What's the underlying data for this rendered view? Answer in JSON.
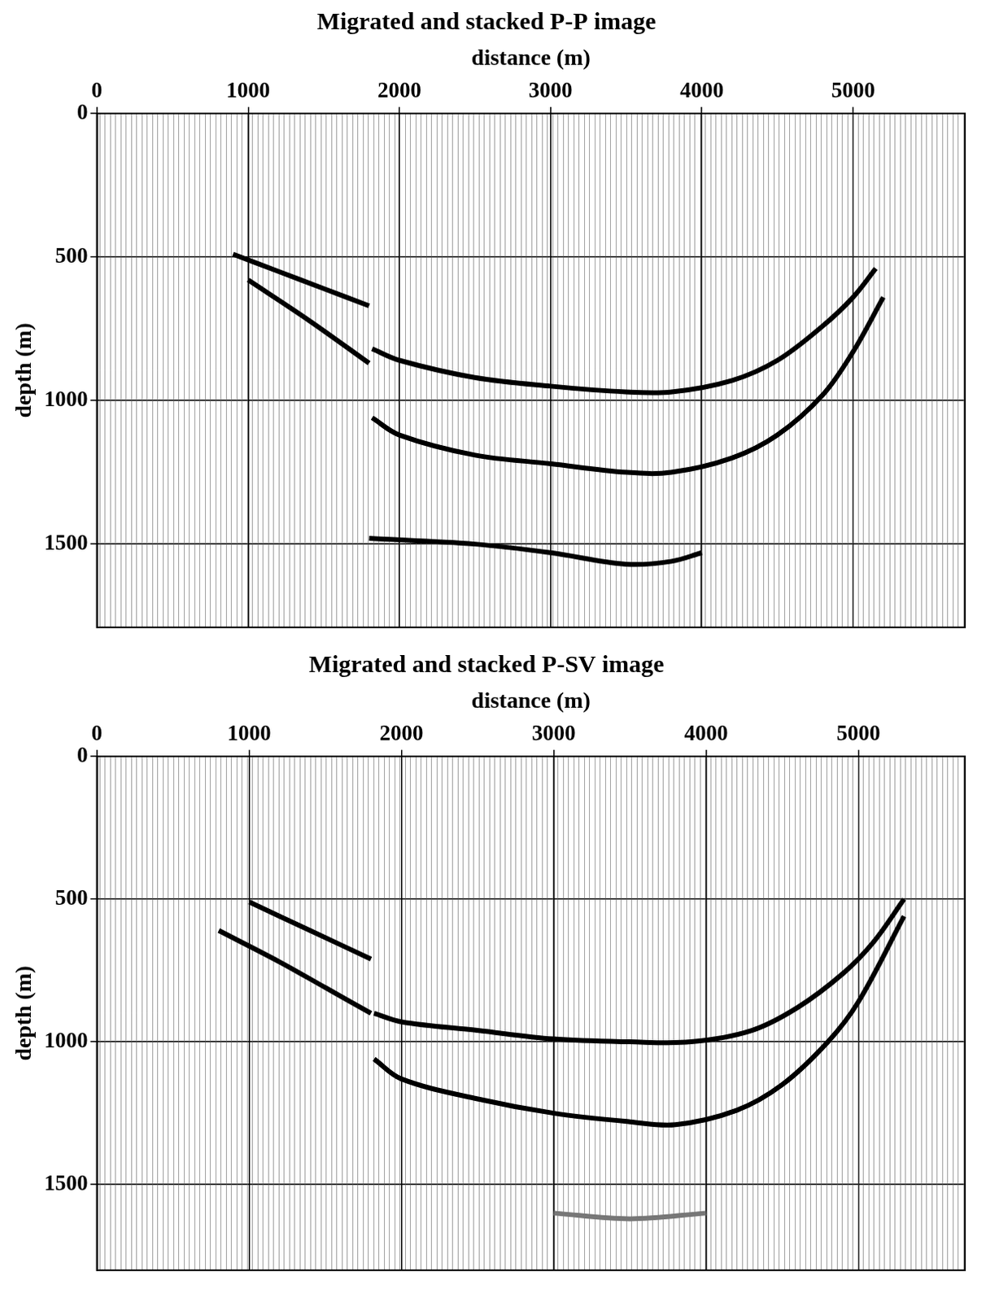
{
  "chart_data": [
    {
      "type": "line",
      "title": "Migrated and stacked P-P image",
      "x_label": "distance (m)",
      "y_label": "depth (m)",
      "xlim": [
        0,
        5740
      ],
      "xticks": [
        0,
        1000,
        2000,
        3000,
        4000,
        5000
      ],
      "ylim": [
        1790,
        0
      ],
      "yticks": [
        0,
        500,
        1000,
        1500
      ],
      "grid": true,
      "series": [
        {
          "color": "#000000",
          "x": [
            900,
            1200,
            1500,
            1800
          ],
          "values": [
            490,
            550,
            610,
            670
          ]
        },
        {
          "color": "#000000",
          "x": [
            1000,
            1400,
            1800
          ],
          "values": [
            580,
            720,
            870
          ]
        },
        {
          "color": "#000000",
          "x": [
            1820,
            2000,
            2500,
            3000,
            3500,
            3800,
            4200,
            4500,
            4800,
            5000,
            5150
          ],
          "values": [
            820,
            860,
            920,
            950,
            970,
            970,
            930,
            860,
            740,
            640,
            540
          ]
        },
        {
          "color": "#000000",
          "x": [
            1820,
            2000,
            2500,
            3000,
            3500,
            3800,
            4200,
            4500,
            4800,
            5000,
            5200
          ],
          "values": [
            1060,
            1120,
            1190,
            1220,
            1250,
            1250,
            1200,
            1120,
            980,
            830,
            640
          ]
        },
        {
          "color": "#000000",
          "x": [
            1800,
            2500,
            3000,
            3500,
            3800,
            4000
          ],
          "values": [
            1480,
            1500,
            1530,
            1570,
            1560,
            1530
          ]
        }
      ]
    },
    {
      "type": "line",
      "title": "Migrated and stacked P-SV image",
      "x_label": "distance (m)",
      "y_label": "depth (m)",
      "xlim": [
        0,
        5700
      ],
      "xticks": [
        0,
        1000,
        2000,
        3000,
        4000,
        5000
      ],
      "ylim": [
        1800,
        0
      ],
      "yticks": [
        0,
        500,
        1000,
        1500
      ],
      "grid": true,
      "series": [
        {
          "color": "#000000",
          "x": [
            1000,
            1400,
            1800
          ],
          "values": [
            510,
            610,
            710
          ]
        },
        {
          "color": "#000000",
          "x": [
            800,
            1200,
            1500,
            1800
          ],
          "values": [
            610,
            720,
            810,
            900
          ]
        },
        {
          "color": "#000000",
          "x": [
            1820,
            2000,
            2500,
            3000,
            3500,
            3900,
            4300,
            4600,
            4900,
            5100,
            5300
          ],
          "values": [
            900,
            930,
            960,
            990,
            1000,
            1000,
            960,
            880,
            760,
            650,
            500
          ]
        },
        {
          "color": "#000000",
          "x": [
            1820,
            2000,
            2500,
            3000,
            3500,
            3800,
            4200,
            4500,
            4800,
            5000,
            5300
          ],
          "values": [
            1060,
            1130,
            1200,
            1250,
            1280,
            1290,
            1240,
            1150,
            1000,
            860,
            560
          ]
        },
        {
          "color": "#777777",
          "x": [
            3000,
            3500,
            4000
          ],
          "values": [
            1600,
            1620,
            1600
          ]
        }
      ]
    }
  ]
}
